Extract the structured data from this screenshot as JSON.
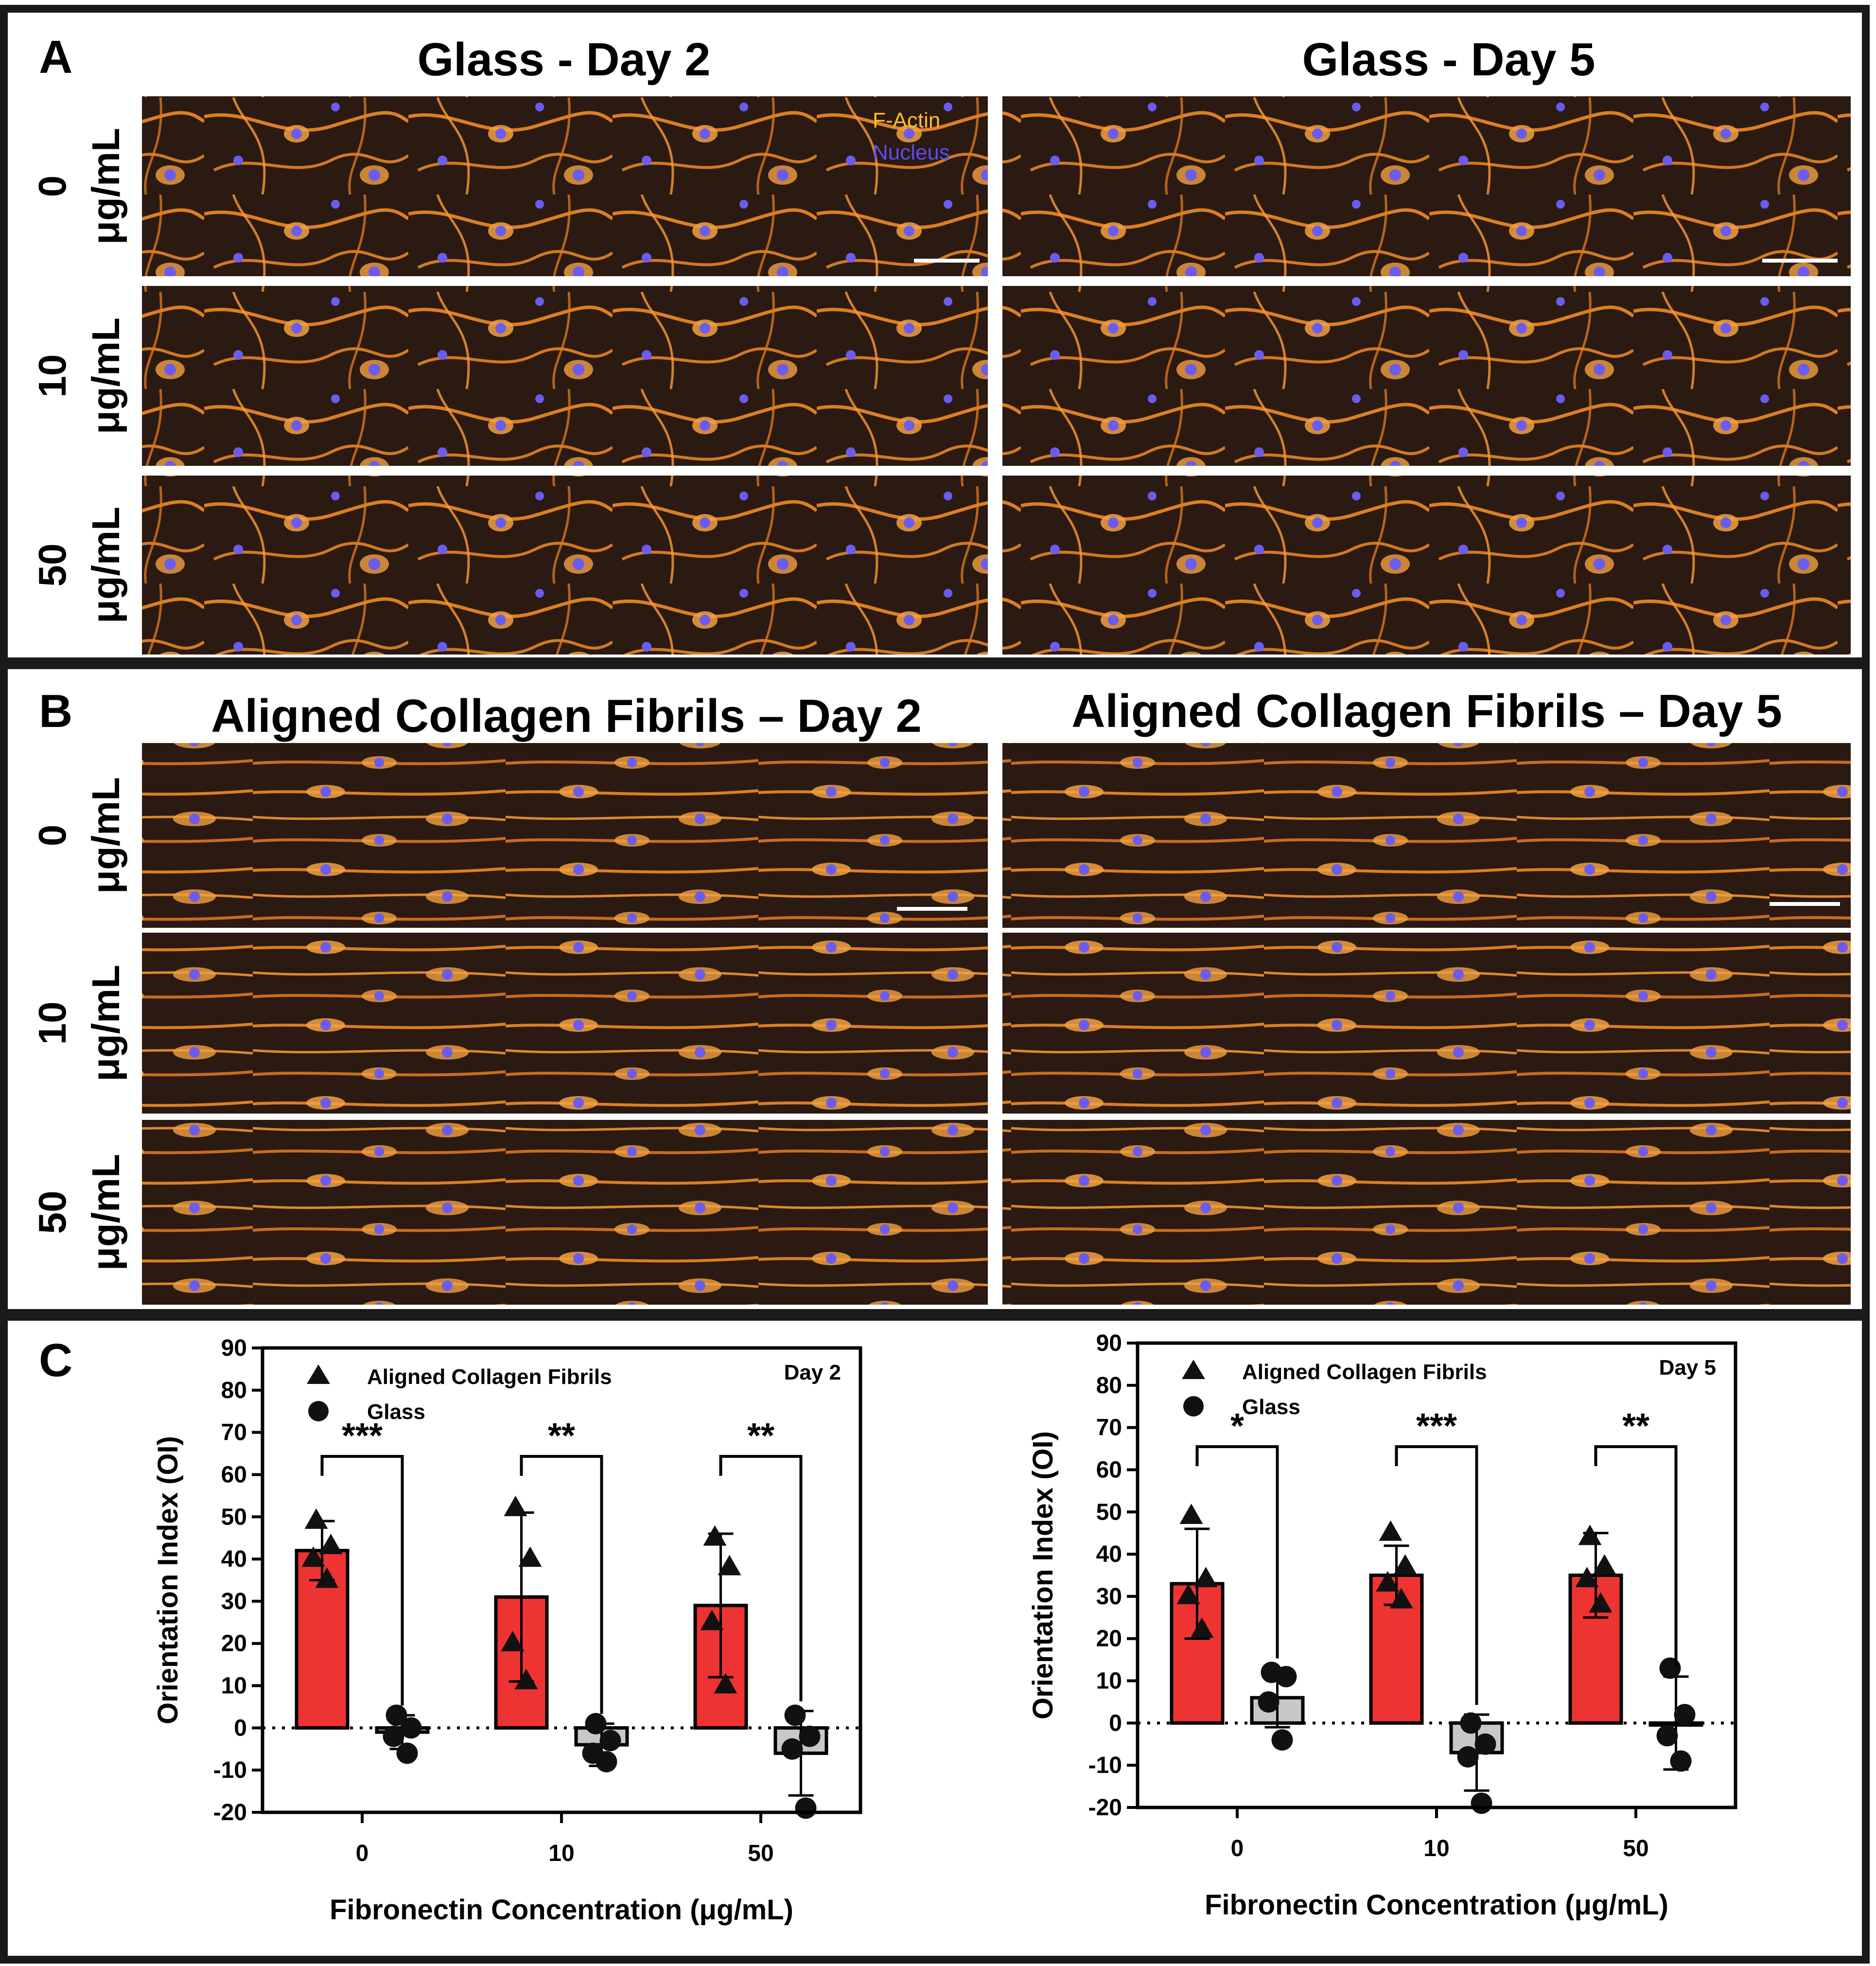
{
  "panels": {
    "A": {
      "letter": "A",
      "titles": [
        "Glass - Day 2",
        "Glass - Day 5"
      ],
      "rows": [
        {
          "num": "0",
          "unit": "μg/mL"
        },
        {
          "num": "10",
          "unit": "μg/mL"
        },
        {
          "num": "50",
          "unit": "μg/mL"
        }
      ],
      "overlay": {
        "factin": "F-Actin",
        "nucleus": "Nucleus"
      }
    },
    "B": {
      "letter": "B",
      "titles": [
        "Aligned Collagen Fibrils – Day 2",
        "Aligned Collagen Fibrils – Day 5"
      ],
      "rows": [
        {
          "num": "0",
          "unit": "μg/mL"
        },
        {
          "num": "10",
          "unit": "μg/mL"
        },
        {
          "num": "50",
          "unit": "μg/mL"
        }
      ]
    },
    "C": {
      "letter": "C"
    }
  },
  "colors": {
    "background_dark": "#2a1a12",
    "actin": "#f08a24",
    "actin_bright": "#ffc040",
    "nucleus": "#6a5cf0",
    "bar_fibrils": "#ee3333",
    "bar_glass": "#c8c8c8",
    "frame": "#1a1a1a"
  },
  "chart_data": [
    {
      "type": "bar",
      "title": "Day 2",
      "xlabel": "Fibronectin Concentration (μg/mL)",
      "ylabel": "Orientation Index (OI)",
      "categories": [
        "0",
        "10",
        "50"
      ],
      "ylim": [
        -20,
        90
      ],
      "yticks": [
        -20,
        -10,
        0,
        10,
        20,
        30,
        40,
        50,
        60,
        70,
        80,
        90
      ],
      "legend": {
        "position": "top-left",
        "entries": [
          "Aligned Collagen Fibrils",
          "Glass"
        ]
      },
      "series": [
        {
          "name": "Aligned Collagen Fibrils",
          "marker": "triangle",
          "color": "#ee3333",
          "values": [
            42,
            31,
            29
          ],
          "sd": [
            7,
            20,
            17
          ],
          "points": [
            [
              49,
              43,
              40,
              35
            ],
            [
              52,
              40,
              20,
              11
            ],
            [
              45,
              38,
              25,
              10
            ]
          ]
        },
        {
          "name": "Glass",
          "marker": "circle",
          "color": "#c8c8c8",
          "values": [
            -1,
            -4,
            -6
          ],
          "sd": [
            4,
            5,
            10
          ],
          "points": [
            [
              3,
              0,
              -2,
              -6
            ],
            [
              1,
              -3,
              -6,
              -8
            ],
            [
              3,
              -2,
              -5,
              -19
            ]
          ]
        }
      ],
      "significance": [
        "***",
        "**",
        "**"
      ]
    },
    {
      "type": "bar",
      "title": "Day 5",
      "xlabel": "Fibronectin Concentration (μg/mL)",
      "ylabel": "Orientation Index (OI)",
      "categories": [
        "0",
        "10",
        "50"
      ],
      "ylim": [
        -20,
        90
      ],
      "yticks": [
        -20,
        -10,
        0,
        10,
        20,
        30,
        40,
        50,
        60,
        70,
        80,
        90
      ],
      "legend": {
        "position": "top-left",
        "entries": [
          "Aligned Collagen Fibrils",
          "Glass"
        ]
      },
      "series": [
        {
          "name": "Aligned Collagen Fibrils",
          "marker": "triangle",
          "color": "#ee3333",
          "values": [
            33,
            35,
            35
          ],
          "sd": [
            13,
            7,
            10
          ],
          "points": [
            [
              49,
              34,
              30,
              22
            ],
            [
              45,
              37,
              33,
              29
            ],
            [
              44,
              37,
              34,
              28
            ]
          ]
        },
        {
          "name": "Glass",
          "marker": "circle",
          "color": "#c8c8c8",
          "values": [
            6,
            -7,
            0
          ],
          "sd": [
            7,
            9,
            11
          ],
          "points": [
            [
              12,
              11,
              5,
              -4
            ],
            [
              0,
              -5,
              -8,
              -19
            ],
            [
              13,
              2,
              -3,
              -9
            ]
          ]
        }
      ],
      "significance": [
        "*",
        "***",
        "**"
      ]
    }
  ]
}
